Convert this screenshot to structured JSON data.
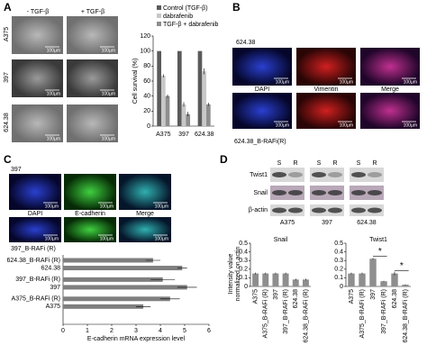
{
  "panel_a": {
    "label": "A",
    "columns": [
      "- TGF-β",
      "+ TGF-β"
    ],
    "rows": [
      "A375",
      "397",
      "624.38"
    ],
    "scale_bar": "100µm"
  },
  "panel_b": {
    "label": "B",
    "top_row": "624.38",
    "bottom_row": "624.38_B-RAFi(R)",
    "channels": [
      "DAPI",
      "Vimentin",
      "Merge"
    ],
    "scale_bar": "100µm"
  },
  "panel_c": {
    "label": "C",
    "top_row": "397",
    "bottom_row": "397_B-RAFi (R)",
    "channels": [
      "DAPI",
      "E-cadherin",
      "Merge"
    ],
    "scale_bar": "100µm"
  },
  "panel_d": {
    "label": "D",
    "lanes": [
      "S",
      "R"
    ],
    "proteins": [
      "Twist1",
      "Snail",
      "β-actin"
    ],
    "cell_lines": [
      "A375",
      "397",
      "624.38"
    ]
  },
  "chart_data": [
    {
      "type": "bar",
      "ylabel": "Cell survival (%)",
      "categories": [
        "A375",
        "397",
        "624.38"
      ],
      "series": [
        {
          "name": "Control (TGF-β)",
          "color": "#5a5a5a",
          "values": [
            100,
            100,
            100
          ],
          "errors": [
            0,
            0,
            0
          ]
        },
        {
          "name": "dabrafenib",
          "color": "#c8c8c8",
          "values": [
            67,
            29,
            73
          ],
          "errors": [
            2,
            3,
            4
          ]
        },
        {
          "name": "TGF-β + dabrafenib",
          "color": "#8e8e8e",
          "values": [
            40,
            16,
            29
          ],
          "errors": [
            2,
            3,
            2
          ]
        }
      ],
      "ylim": [
        0,
        120
      ],
      "yticks": [
        0,
        20,
        40,
        60,
        80,
        100,
        120
      ]
    },
    {
      "type": "hbar",
      "xlabel": "E-cadherin mRNA expression level",
      "categories": [
        "624.38_B-RAFi (R)",
        "624.38",
        "397_B-RAFi (R)",
        "397",
        "A375_B-RAFi (R)",
        "A375"
      ],
      "values": [
        3.7,
        4.9,
        4.1,
        5.1,
        4.4,
        3.3
      ],
      "errors": [
        0.3,
        0.2,
        0.5,
        0.4,
        0.4,
        0.3
      ],
      "color": "#7f7f7f",
      "xlim": [
        0,
        6
      ],
      "xticks": [
        0,
        1,
        2,
        3,
        4,
        5,
        6
      ]
    },
    {
      "type": "bar",
      "title": "Snail",
      "ylabel": [
        "Intensity value",
        "normalized on actin"
      ],
      "categories": [
        "A375",
        "A375_B-RAFi (R)",
        "397",
        "397_B-RAFi (R)",
        "624.38",
        "624.38_B-RAFi (R)"
      ],
      "values": [
        0.15,
        0.15,
        0.15,
        0.15,
        0.08,
        0.08
      ],
      "errors": [
        0.01,
        0.01,
        0.01,
        0.01,
        0.01,
        0.01
      ],
      "color": "#8e8e8e",
      "ylim": [
        0,
        0.5
      ],
      "yticks": [
        0,
        0.1,
        0.2,
        0.3,
        0.4,
        0.5
      ]
    },
    {
      "type": "bar",
      "title": "Twist1",
      "categories": [
        "A375",
        "A375_B-RAFi (R)",
        "397",
        "397_B-RAFi (R)",
        "624.38",
        "624.38_B-RAFi (R)"
      ],
      "values": [
        0.15,
        0.15,
        0.32,
        0.06,
        0.15,
        0.02
      ],
      "errors": [
        0.01,
        0.01,
        0.01,
        0.005,
        0.02,
        0.005
      ],
      "color": "#8e8e8e",
      "ylim": [
        0,
        0.5
      ],
      "yticks": [
        0,
        0.1,
        0.2,
        0.3,
        0.4,
        0.5
      ],
      "annotations": [
        "*",
        "*"
      ]
    }
  ]
}
